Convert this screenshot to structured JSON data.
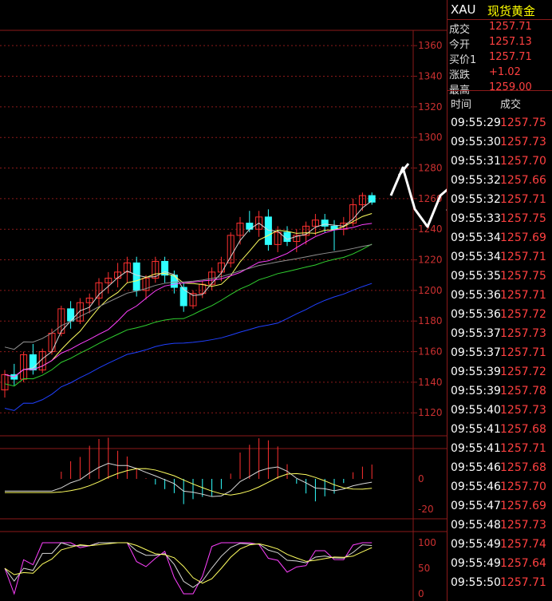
{
  "quote_header": {
    "code": "XAU",
    "name": "现货黄金"
  },
  "quote_rows": [
    {
      "label": "成交",
      "value": "1257.71"
    },
    {
      "label": "今开",
      "value": "1257.13"
    },
    {
      "label": "买价1",
      "value": "1257.71"
    },
    {
      "label": "涨跌",
      "value": "+1.02"
    },
    {
      "label": "最高",
      "value": "1259.00"
    }
  ],
  "ticks_header": {
    "time": "时间",
    "price": "成交"
  },
  "ticks": [
    {
      "time": "09:55:29",
      "price": "1257.75"
    },
    {
      "time": "09:55:30",
      "price": "1257.73"
    },
    {
      "time": "09:55:31",
      "price": "1257.70"
    },
    {
      "time": "09:55:32",
      "price": "1257.66"
    },
    {
      "time": "09:55:32",
      "price": "1257.71"
    },
    {
      "time": "09:55:33",
      "price": "1257.75"
    },
    {
      "time": "09:55:34",
      "price": "1257.69"
    },
    {
      "time": "09:55:34",
      "price": "1257.71"
    },
    {
      "time": "09:55:35",
      "price": "1257.75"
    },
    {
      "time": "09:55:36",
      "price": "1257.71"
    },
    {
      "time": "09:55:36",
      "price": "1257.72"
    },
    {
      "time": "09:55:37",
      "price": "1257.73"
    },
    {
      "time": "09:55:37",
      "price": "1257.71"
    },
    {
      "time": "09:55:39",
      "price": "1257.72"
    },
    {
      "time": "09:55:39",
      "price": "1257.78"
    },
    {
      "time": "09:55:40",
      "price": "1257.73"
    },
    {
      "time": "09:55:41",
      "price": "1257.68"
    },
    {
      "time": "09:55:41",
      "price": "1257.71"
    },
    {
      "time": "09:55:46",
      "price": "1257.68"
    },
    {
      "time": "09:55:46",
      "price": "1257.70"
    },
    {
      "time": "09:55:47",
      "price": "1257.69"
    },
    {
      "time": "09:55:48",
      "price": "1257.73"
    },
    {
      "time": "09:55:49",
      "price": "1257.74"
    },
    {
      "time": "09:55:49",
      "price": "1257.64"
    },
    {
      "time": "09:55:50",
      "price": "1257.71"
    }
  ],
  "colors": {
    "up": "#ff3030",
    "down": "#30ffff",
    "axis": "#8b1a1a",
    "label": "#cc3030",
    "ma_white": "#d8d8d8",
    "ma_yellow": "#ffff60",
    "ma_magenta": "#ff40ff",
    "ma_green": "#30d030",
    "ma_blue": "#2040ff",
    "ma_gray": "#909090"
  },
  "chart_data": {
    "type": "candlestick",
    "price_axis": {
      "min": 1105,
      "max": 1370,
      "ticks": [
        1360,
        1340,
        1320,
        1300,
        1280,
        1260,
        1240,
        1220,
        1200,
        1180,
        1160,
        1140,
        1120
      ]
    },
    "macd_axis": {
      "ticks": [
        0,
        -20
      ]
    },
    "kdj_axis": {
      "ticks": [
        100,
        50,
        0
      ]
    },
    "candles": [
      [
        1135,
        1148,
        1130,
        1145
      ],
      [
        1145,
        1152,
        1138,
        1142
      ],
      [
        1142,
        1160,
        1140,
        1158
      ],
      [
        1158,
        1165,
        1145,
        1148
      ],
      [
        1148,
        1162,
        1146,
        1160
      ],
      [
        1160,
        1175,
        1158,
        1172
      ],
      [
        1172,
        1190,
        1170,
        1188
      ],
      [
        1188,
        1193,
        1175,
        1180
      ],
      [
        1180,
        1195,
        1178,
        1192
      ],
      [
        1192,
        1198,
        1185,
        1195
      ],
      [
        1195,
        1208,
        1190,
        1205
      ],
      [
        1205,
        1212,
        1198,
        1208
      ],
      [
        1208,
        1218,
        1202,
        1212
      ],
      [
        1212,
        1222,
        1205,
        1218
      ],
      [
        1218,
        1222,
        1196,
        1200
      ],
      [
        1200,
        1210,
        1194,
        1208
      ],
      [
        1208,
        1222,
        1205,
        1219
      ],
      [
        1219,
        1222,
        1205,
        1210
      ],
      [
        1210,
        1213,
        1198,
        1202
      ],
      [
        1202,
        1205,
        1186,
        1190
      ],
      [
        1190,
        1200,
        1188,
        1198
      ],
      [
        1198,
        1206,
        1195,
        1204
      ],
      [
        1204,
        1215,
        1200,
        1212
      ],
      [
        1212,
        1222,
        1206,
        1218
      ],
      [
        1218,
        1238,
        1215,
        1236
      ],
      [
        1236,
        1248,
        1230,
        1244
      ],
      [
        1244,
        1252,
        1238,
        1240
      ],
      [
        1240,
        1252,
        1235,
        1248
      ],
      [
        1248,
        1253,
        1226,
        1230
      ],
      [
        1230,
        1242,
        1225,
        1238
      ],
      [
        1238,
        1242,
        1229,
        1232
      ],
      [
        1232,
        1240,
        1225,
        1236
      ],
      [
        1236,
        1245,
        1230,
        1242
      ],
      [
        1242,
        1250,
        1236,
        1246
      ],
      [
        1246,
        1250,
        1238,
        1242
      ],
      [
        1242,
        1246,
        1226,
        1240
      ],
      [
        1240,
        1248,
        1236,
        1244
      ],
      [
        1244,
        1260,
        1242,
        1256
      ],
      [
        1256,
        1264,
        1252,
        1262
      ],
      [
        1262,
        1264,
        1256,
        1257.71
      ]
    ]
  }
}
